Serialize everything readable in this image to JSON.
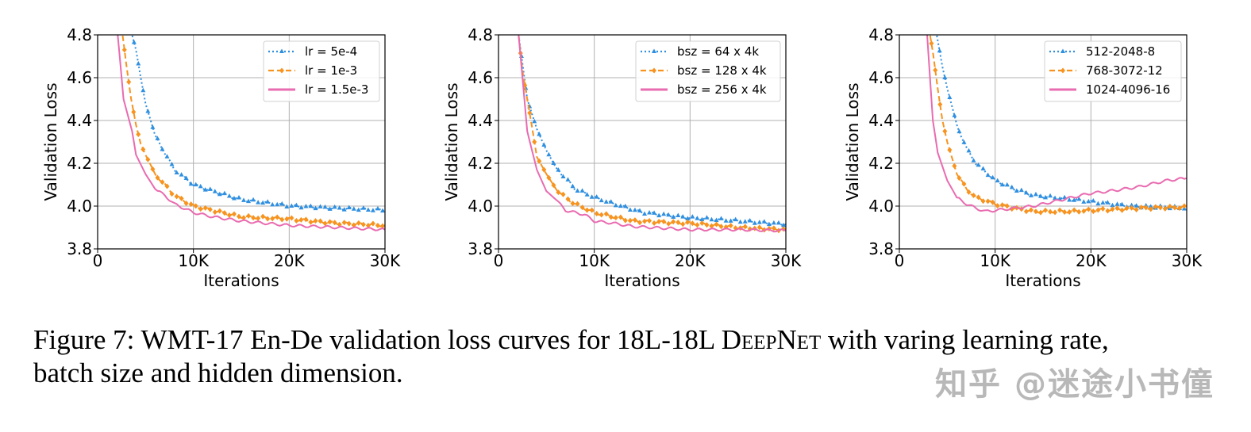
{
  "chart_data": [
    {
      "type": "line",
      "xlabel": "Iterations",
      "ylabel": "Validation Loss",
      "xlim": [
        0,
        30000
      ],
      "ylim": [
        3.8,
        4.8
      ],
      "xticks": [
        "0",
        "10K",
        "20K",
        "30K"
      ],
      "yticks": [
        "3.8",
        "4.0",
        "4.2",
        "4.4",
        "4.6",
        "4.8"
      ],
      "grid": true,
      "legend_position": "top-right",
      "series": [
        {
          "name": "lr = 5e-4",
          "color": "#2f8fe0",
          "style": "dotted",
          "marker": "triangle",
          "x": [
            3600,
            4000,
            4500,
            5000,
            6000,
            7000,
            8000,
            10000,
            12000,
            15000,
            20000,
            25000,
            30000
          ],
          "y": [
            4.8,
            4.73,
            4.6,
            4.48,
            4.33,
            4.25,
            4.17,
            4.1,
            4.07,
            4.03,
            4.0,
            3.99,
            3.98
          ]
        },
        {
          "name": "lr = 1e-3",
          "color": "#f7931e",
          "style": "dashed",
          "marker": "diamond",
          "x": [
            2600,
            3000,
            3500,
            4000,
            4500,
            5000,
            6000,
            7000,
            8000,
            10000,
            12000,
            15000,
            20000,
            25000,
            30000
          ],
          "y": [
            4.8,
            4.66,
            4.5,
            4.38,
            4.29,
            4.24,
            4.15,
            4.1,
            4.05,
            4.0,
            3.98,
            3.95,
            3.94,
            3.92,
            3.91
          ]
        },
        {
          "name": "lr = 1.5e-3",
          "color": "#e96bb0",
          "style": "solid",
          "marker": "none",
          "x": [
            2100,
            2700,
            3600,
            4000,
            5000,
            6000,
            7000,
            8000,
            10000,
            12000,
            15000,
            20000,
            25000,
            30000
          ],
          "y": [
            4.8,
            4.5,
            4.35,
            4.24,
            4.15,
            4.08,
            4.05,
            4.01,
            3.97,
            3.95,
            3.93,
            3.91,
            3.9,
            3.89
          ]
        }
      ]
    },
    {
      "type": "line",
      "xlabel": "Iterations",
      "ylabel": "Validation Loss",
      "xlim": [
        0,
        30000
      ],
      "ylim": [
        3.8,
        4.8
      ],
      "xticks": [
        "0",
        "10K",
        "20K",
        "30K"
      ],
      "yticks": [
        "3.8",
        "4.0",
        "4.2",
        "4.4",
        "4.6",
        "4.8"
      ],
      "grid": true,
      "legend_position": "top-right",
      "series": [
        {
          "name": "bsz = 64 x 4k",
          "color": "#2f8fe0",
          "style": "dotted",
          "marker": "triangle",
          "x": [
            2100,
            2700,
            3000,
            4000,
            5000,
            6000,
            7000,
            8000,
            10000,
            12000,
            15000,
            20000,
            25000,
            30000
          ],
          "y": [
            4.8,
            4.6,
            4.5,
            4.36,
            4.26,
            4.18,
            4.13,
            4.08,
            4.04,
            4.01,
            3.97,
            3.945,
            3.93,
            3.915
          ]
        },
        {
          "name": "bsz = 128 x 4k",
          "color": "#f7931e",
          "style": "dashed",
          "marker": "diamond",
          "x": [
            2100,
            2500,
            3000,
            3500,
            4000,
            5000,
            6000,
            7000,
            8000,
            10000,
            12000,
            14000,
            20000,
            25000,
            30000
          ],
          "y": [
            4.8,
            4.63,
            4.5,
            4.37,
            4.23,
            4.15,
            4.08,
            4.04,
            4.01,
            3.97,
            3.95,
            3.93,
            3.92,
            3.9,
            3.89
          ]
        },
        {
          "name": "bsz = 256 x 4k",
          "color": "#e96bb0",
          "style": "solid",
          "marker": "none",
          "x": [
            2100,
            2700,
            3000,
            4000,
            5000,
            6000,
            7000,
            8000,
            9000,
            10000,
            12000,
            14000,
            20000,
            25000,
            30000
          ],
          "y": [
            4.8,
            4.5,
            4.35,
            4.17,
            4.07,
            4.03,
            3.98,
            3.97,
            3.96,
            3.93,
            3.92,
            3.905,
            3.89,
            3.89,
            3.885
          ]
        }
      ]
    },
    {
      "type": "line",
      "xlabel": "Iterations",
      "ylabel": "Validation Loss",
      "xlim": [
        0,
        30000
      ],
      "ylim": [
        3.8,
        4.8
      ],
      "xticks": [
        "0",
        "10K",
        "20K",
        "30K"
      ],
      "yticks": [
        "3.8",
        "4.0",
        "4.2",
        "4.4",
        "4.6",
        "4.8"
      ],
      "grid": true,
      "legend_position": "top-right",
      "series": [
        {
          "name": "512-2048-8",
          "color": "#2f8fe0",
          "style": "dotted",
          "marker": "triangle",
          "x": [
            3900,
            4500,
            5000,
            6000,
            7000,
            8000,
            9000,
            10000,
            12000,
            14000,
            16000,
            18000,
            20000,
            22000,
            24000,
            30000
          ],
          "y": [
            4.8,
            4.65,
            4.55,
            4.38,
            4.27,
            4.2,
            4.16,
            4.12,
            4.08,
            4.05,
            4.04,
            4.03,
            4.02,
            4.01,
            4.0,
            3.99
          ]
        },
        {
          "name": "768-3072-12",
          "color": "#f7931e",
          "style": "dashed",
          "marker": "diamond",
          "x": [
            3200,
            3500,
            4000,
            4500,
            5000,
            6000,
            7000,
            8000,
            10000,
            12000,
            14000,
            18000,
            20000,
            25000,
            30000
          ],
          "y": [
            4.8,
            4.72,
            4.55,
            4.4,
            4.3,
            4.15,
            4.08,
            4.04,
            4.01,
            3.99,
            3.975,
            3.975,
            3.98,
            3.99,
            3.995
          ]
        },
        {
          "name": "1024-4096-16",
          "color": "#e96bb0",
          "style": "solid",
          "marker": "none",
          "x": [
            2900,
            3500,
            4000,
            5000,
            6000,
            7000,
            8000,
            9000,
            10000,
            12000,
            14000,
            16000,
            18000,
            20000,
            22000,
            25000,
            28000,
            30000
          ],
          "y": [
            4.8,
            4.4,
            4.25,
            4.12,
            4.04,
            4.01,
            3.99,
            3.975,
            3.98,
            3.99,
            4.0,
            4.02,
            4.04,
            4.06,
            4.07,
            4.09,
            4.12,
            4.13
          ]
        }
      ]
    }
  ],
  "caption": {
    "prefix": "Figure 7: WMT-17 En-De validation loss curves for 18L-18L ",
    "model": "DeepNet",
    "suffix": " with varing learning rate,",
    "line2": "batch size and hidden dimension."
  },
  "watermark": "知乎 @迷途小书僮"
}
